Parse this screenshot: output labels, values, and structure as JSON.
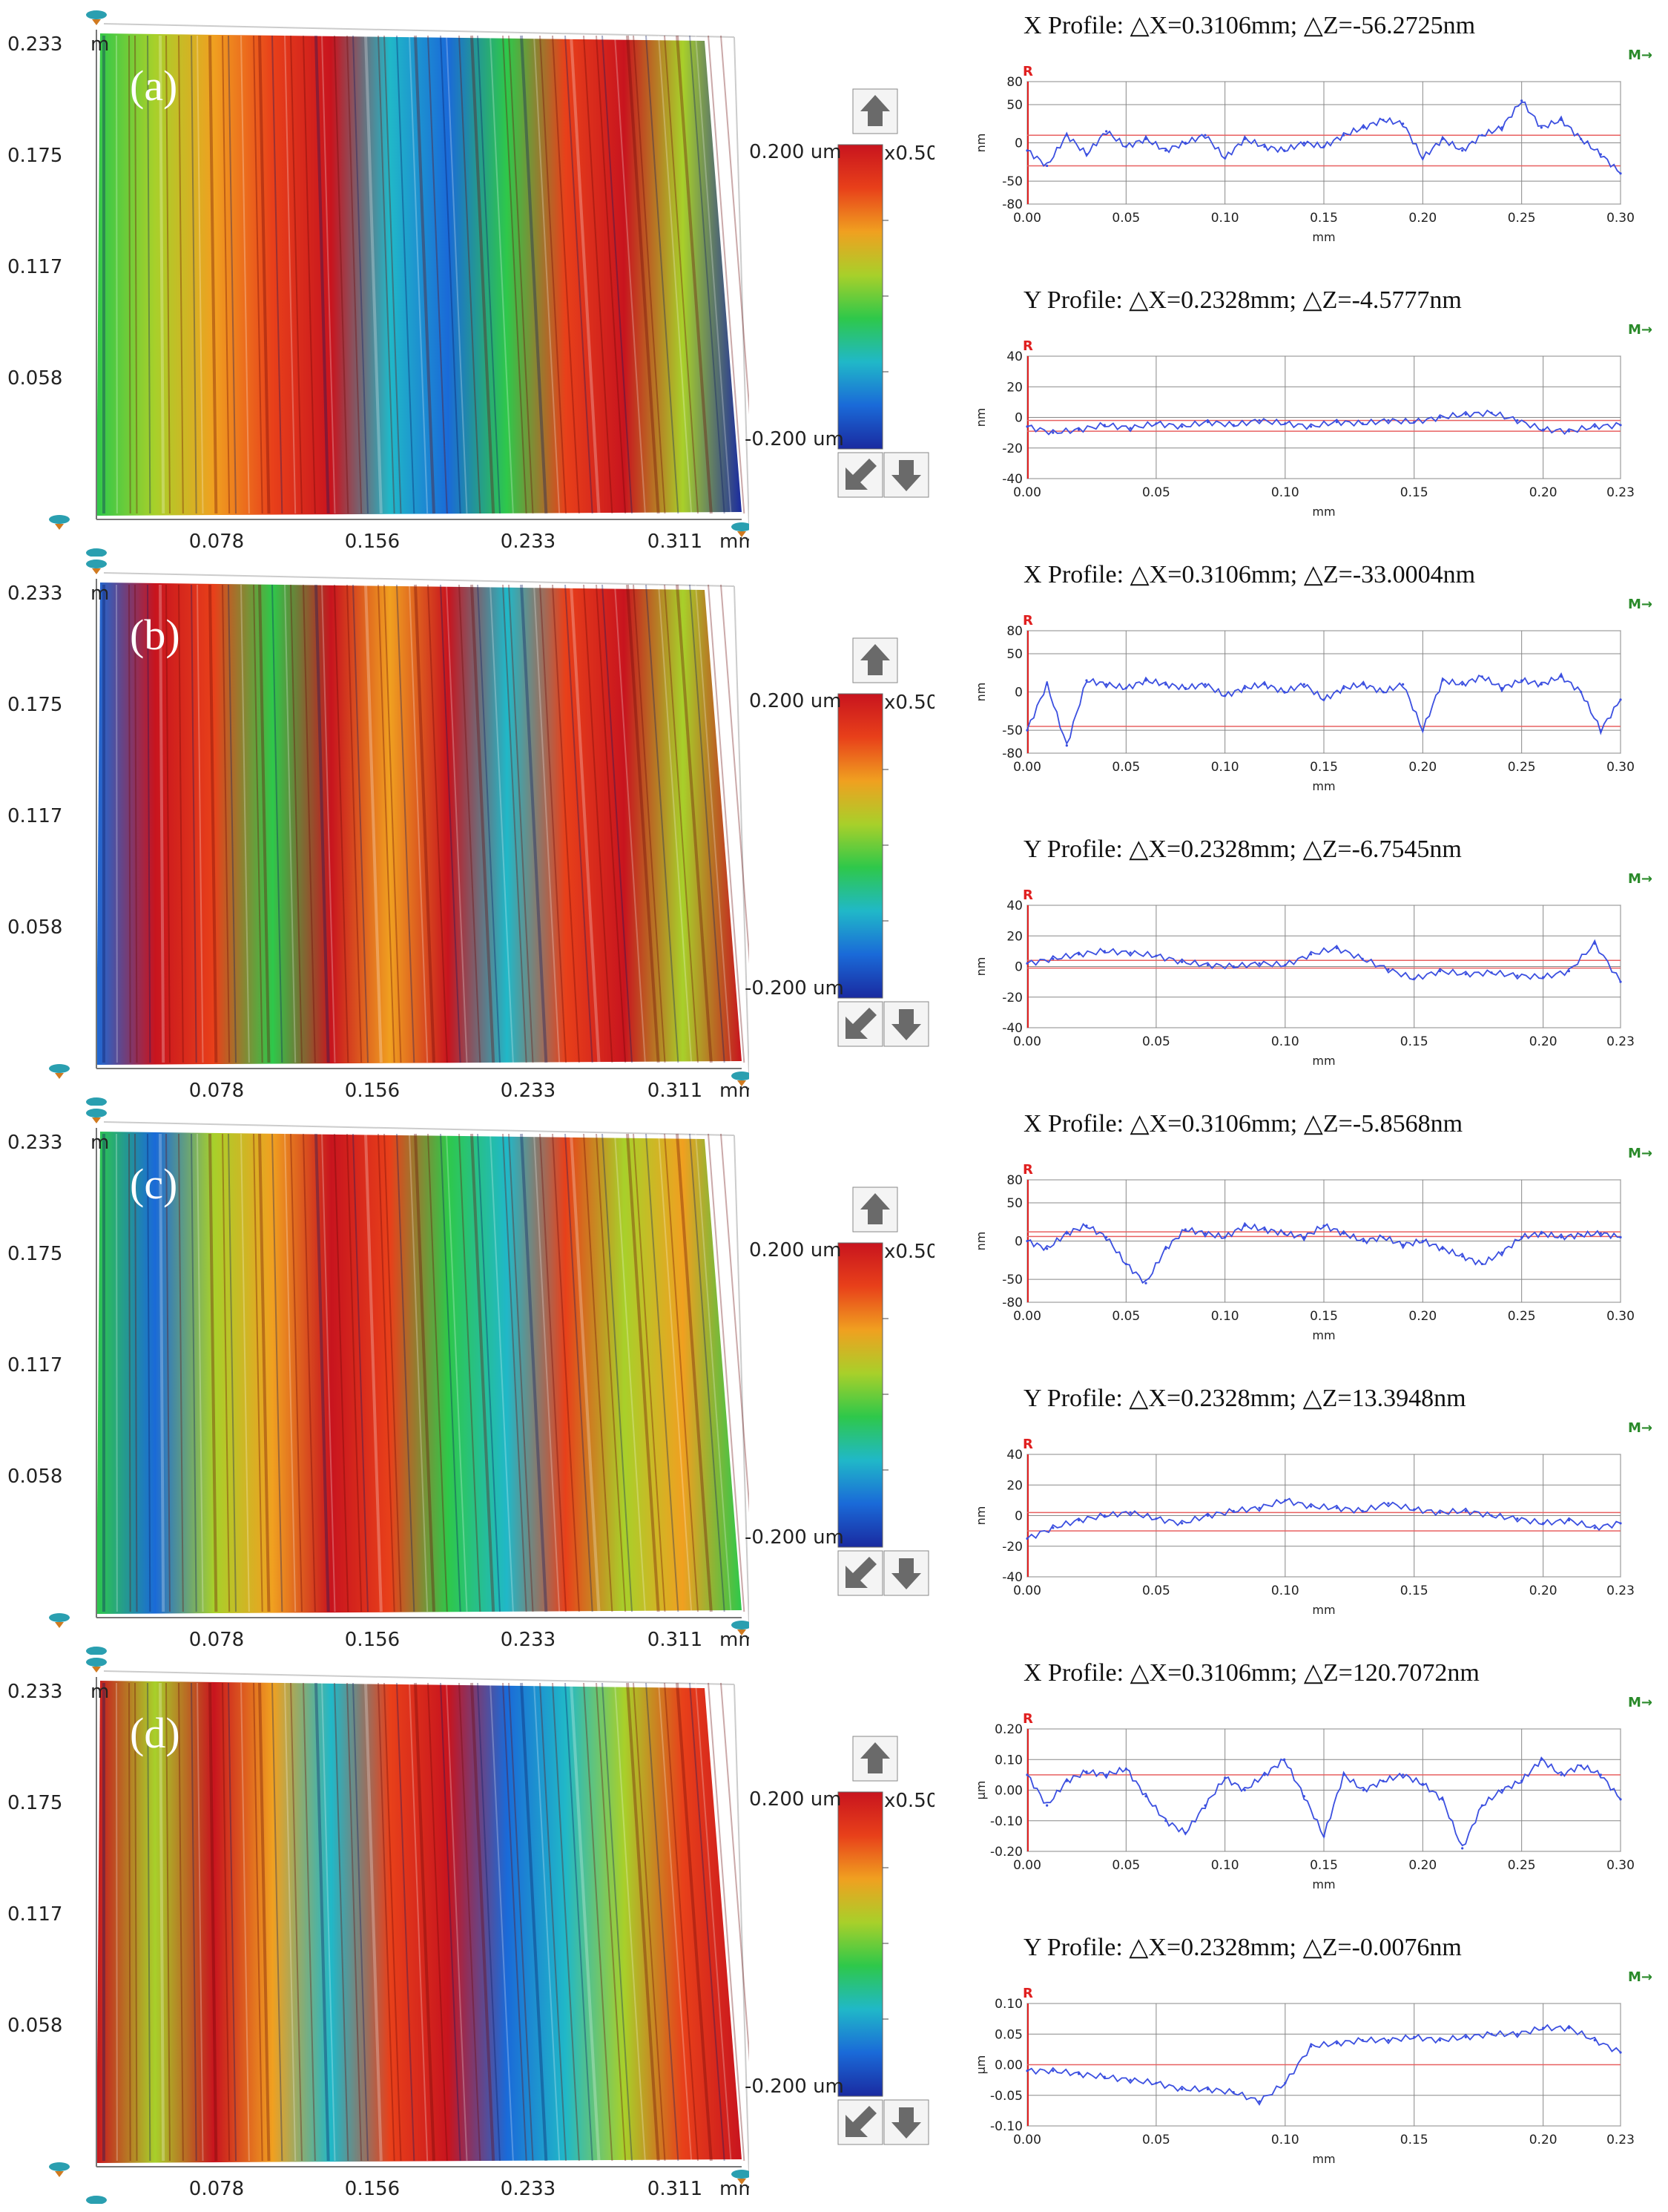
{
  "colors": {
    "profile_line": "#3b4fe0",
    "reference_line": "#e86060",
    "grid": "#888888",
    "marker_R": "#e02020",
    "marker_M": "#2a8a2a",
    "colorbar": [
      "#c8141e",
      "#e8401a",
      "#f0a020",
      "#a8d02a",
      "#2ec84a",
      "#20b8c8",
      "#1a6ad8",
      "#1a2aa0"
    ]
  },
  "icons": [
    "arrow-up-icon",
    "arrow-down-left-icon",
    "arrow-down-icon",
    "axis-handle-icon"
  ],
  "common": {
    "scale_top": "0.200 um",
    "scale_bottom": "-0.200 um",
    "scale_mult": "x0.50",
    "marker_R": "R",
    "marker_M": "M→",
    "x_ticks": [
      "0.078",
      "0.156",
      "0.233",
      "0.311"
    ],
    "x_unit": "mm",
    "y_ticks": [
      "0.233",
      "0.175",
      "0.117",
      "0.058"
    ],
    "y_unit_stub": "m"
  },
  "panels": [
    {
      "label": "(a)",
      "surface_bands": [
        "#2ec84a",
        "#a8d02a",
        "#f0a020",
        "#e8401a",
        "#c8141e",
        "#20b8c8",
        "#1a6ad8",
        "#2ec84a",
        "#e8401a",
        "#c8141e",
        "#a8d02a",
        "#1a2aa0"
      ],
      "x_profile": {
        "title": "X Profile: △X=0.3106mm;    △Z=-56.2725nm",
        "chart_data": {
          "type": "line",
          "xlabel": "mm",
          "ylabel": "nm",
          "xlim": [
            0,
            0.3
          ],
          "ylim": [
            -80,
            80
          ],
          "xticks": [
            "0.00",
            "0.05",
            "0.10",
            "0.15",
            "0.20",
            "0.25",
            "0.30"
          ],
          "yticks": [
            "80",
            "50",
            "0",
            "-50",
            "-80"
          ],
          "ref_lines": [
            10,
            -30
          ],
          "x": [
            0,
            0.01,
            0.02,
            0.03,
            0.04,
            0.05,
            0.06,
            0.07,
            0.08,
            0.09,
            0.1,
            0.11,
            0.12,
            0.13,
            0.14,
            0.15,
            0.16,
            0.17,
            0.18,
            0.19,
            0.2,
            0.21,
            0.22,
            0.23,
            0.24,
            0.25,
            0.26,
            0.27,
            0.28,
            0.29,
            0.3
          ],
          "values": [
            -10,
            -30,
            10,
            -15,
            15,
            -5,
            5,
            -10,
            0,
            10,
            -20,
            5,
            -5,
            -10,
            0,
            -5,
            10,
            20,
            30,
            25,
            -20,
            5,
            -10,
            10,
            20,
            55,
            20,
            30,
            5,
            -15,
            -40
          ]
        }
      },
      "y_profile": {
        "title": "Y Profile: △X=0.2328mm;    △Z=-4.5777nm",
        "chart_data": {
          "type": "line",
          "xlabel": "mm",
          "ylabel": "nm",
          "xlim": [
            0,
            0.23
          ],
          "ylim": [
            -40,
            40
          ],
          "xticks": [
            "0.00",
            "0.05",
            "0.10",
            "0.15",
            "0.20",
            "0.23"
          ],
          "yticks": [
            "40",
            "20",
            "0",
            "-20",
            "-40"
          ],
          "ref_lines": [
            -2,
            -9
          ],
          "x": [
            0,
            0.01,
            0.02,
            0.03,
            0.04,
            0.05,
            0.06,
            0.07,
            0.08,
            0.09,
            0.1,
            0.11,
            0.12,
            0.13,
            0.14,
            0.15,
            0.16,
            0.17,
            0.18,
            0.19,
            0.2,
            0.21,
            0.22,
            0.23
          ],
          "values": [
            -6,
            -10,
            -8,
            -5,
            -7,
            -4,
            -6,
            -3,
            -5,
            -2,
            -4,
            -6,
            -3,
            -4,
            -2,
            -3,
            0,
            2,
            3,
            -2,
            -8,
            -9,
            -6,
            -5
          ]
        }
      }
    },
    {
      "label": "(b)",
      "surface_bands": [
        "#1a6ad8",
        "#c8141e",
        "#e8401a",
        "#2ec84a",
        "#c8141e",
        "#f0a020",
        "#c8141e",
        "#20b8c8",
        "#e8401a",
        "#c8141e",
        "#a8d02a",
        "#c8141e"
      ],
      "x_profile": {
        "title": "X Profile: △X=0.3106mm;    △Z=-33.0004nm",
        "chart_data": {
          "type": "line",
          "xlabel": "mm",
          "ylabel": "nm",
          "xlim": [
            0,
            0.3
          ],
          "ylim": [
            -80,
            80
          ],
          "xticks": [
            "0.00",
            "0.05",
            "0.10",
            "0.15",
            "0.20",
            "0.25",
            "0.30"
          ],
          "yticks": [
            "80",
            "50",
            "0",
            "-50",
            "-80"
          ],
          "ref_lines": [
            -45
          ],
          "x": [
            0,
            0.01,
            0.02,
            0.03,
            0.04,
            0.05,
            0.06,
            0.07,
            0.08,
            0.09,
            0.1,
            0.11,
            0.12,
            0.13,
            0.14,
            0.15,
            0.16,
            0.17,
            0.18,
            0.19,
            0.2,
            0.21,
            0.22,
            0.23,
            0.24,
            0.25,
            0.26,
            0.27,
            0.28,
            0.29,
            0.3
          ],
          "values": [
            -50,
            10,
            -70,
            15,
            10,
            5,
            15,
            10,
            5,
            10,
            -5,
            5,
            10,
            0,
            10,
            -10,
            5,
            10,
            0,
            10,
            -50,
            15,
            10,
            20,
            5,
            15,
            10,
            20,
            0,
            -50,
            -10
          ]
        }
      },
      "y_profile": {
        "title": "Y Profile: △X=0.2328mm;    △Z=-6.7545nm",
        "chart_data": {
          "type": "line",
          "xlabel": "mm",
          "ylabel": "nm",
          "xlim": [
            0,
            0.23
          ],
          "ylim": [
            -40,
            40
          ],
          "xticks": [
            "0.00",
            "0.05",
            "0.10",
            "0.15",
            "0.20",
            "0.23"
          ],
          "yticks": [
            "40",
            "20",
            "0",
            "-20",
            "-40"
          ],
          "ref_lines": [
            4,
            -1
          ],
          "x": [
            0,
            0.01,
            0.02,
            0.03,
            0.04,
            0.05,
            0.06,
            0.07,
            0.08,
            0.09,
            0.1,
            0.11,
            0.12,
            0.13,
            0.14,
            0.15,
            0.16,
            0.17,
            0.18,
            0.19,
            0.2,
            0.21,
            0.22,
            0.23
          ],
          "values": [
            2,
            5,
            8,
            10,
            9,
            7,
            3,
            1,
            0,
            2,
            1,
            8,
            12,
            5,
            -2,
            -8,
            -3,
            -5,
            -4,
            -6,
            -7,
            -3,
            15,
            -10
          ]
        }
      }
    },
    {
      "label": "(c)",
      "surface_bands": [
        "#2ec84a",
        "#1a6ad8",
        "#a8d02a",
        "#f0a020",
        "#c8141e",
        "#e8401a",
        "#2ec84a",
        "#20b8c8",
        "#e8401a",
        "#a8d02a",
        "#f0a020",
        "#2ec84a"
      ],
      "x_profile": {
        "title": "X Profile: △X=0.3106mm;    △Z=-5.8568nm",
        "chart_data": {
          "type": "line",
          "xlabel": "mm",
          "ylabel": "nm",
          "xlim": [
            0,
            0.3
          ],
          "ylim": [
            -80,
            80
          ],
          "xticks": [
            "0.00",
            "0.05",
            "0.10",
            "0.15",
            "0.20",
            "0.25",
            "0.30"
          ],
          "yticks": [
            "80",
            "50",
            "0",
            "-50",
            "-80"
          ],
          "ref_lines": [
            12,
            6
          ],
          "x": [
            0,
            0.01,
            0.02,
            0.03,
            0.04,
            0.05,
            0.06,
            0.07,
            0.08,
            0.09,
            0.1,
            0.11,
            0.12,
            0.13,
            0.14,
            0.15,
            0.16,
            0.17,
            0.18,
            0.19,
            0.2,
            0.21,
            0.22,
            0.23,
            0.24,
            0.25,
            0.26,
            0.27,
            0.28,
            0.29,
            0.3
          ],
          "values": [
            0,
            -10,
            10,
            20,
            5,
            -30,
            -55,
            -10,
            15,
            10,
            5,
            20,
            15,
            10,
            5,
            20,
            10,
            0,
            5,
            -5,
            0,
            -10,
            -20,
            -30,
            -15,
            5,
            10,
            5,
            8,
            10,
            5
          ]
        }
      },
      "y_profile": {
        "title": "Y Profile: △X=0.2328mm;    △Z=13.3948nm",
        "chart_data": {
          "type": "line",
          "xlabel": "mm",
          "ylabel": "nm",
          "xlim": [
            0,
            0.23
          ],
          "ylim": [
            -40,
            40
          ],
          "xticks": [
            "0.00",
            "0.05",
            "0.10",
            "0.15",
            "0.20",
            "0.23"
          ],
          "yticks": [
            "40",
            "20",
            "0",
            "-20",
            "-40"
          ],
          "ref_lines": [
            2,
            -10
          ],
          "x": [
            0,
            0.01,
            0.02,
            0.03,
            0.04,
            0.05,
            0.06,
            0.07,
            0.08,
            0.09,
            0.1,
            0.11,
            0.12,
            0.13,
            0.14,
            0.15,
            0.16,
            0.17,
            0.18,
            0.19,
            0.2,
            0.21,
            0.22,
            0.23
          ],
          "values": [
            -15,
            -8,
            -3,
            0,
            2,
            -2,
            -5,
            0,
            3,
            5,
            10,
            6,
            5,
            3,
            8,
            4,
            2,
            3,
            0,
            -2,
            -5,
            -3,
            -8,
            -5
          ]
        }
      }
    },
    {
      "label": "(d)",
      "surface_bands": [
        "#c8141e",
        "#a8d02a",
        "#c8141e",
        "#f0a020",
        "#20b8c8",
        "#e8401a",
        "#c8141e",
        "#1a6ad8",
        "#20b8c8",
        "#a8d02a",
        "#e8401a",
        "#c8141e"
      ],
      "x_profile": {
        "title": "X Profile: △X=0.3106mm;    △Z=120.7072nm",
        "chart_data": {
          "type": "line",
          "xlabel": "mm",
          "ylabel": "μm",
          "xlim": [
            0,
            0.3
          ],
          "ylim": [
            -0.2,
            0.2
          ],
          "xticks": [
            "0.00",
            "0.05",
            "0.10",
            "0.15",
            "0.20",
            "0.25",
            "0.30"
          ],
          "yticks": [
            "0.20",
            "0.10",
            "0.00",
            "-0.10",
            "-0.20"
          ],
          "ref_lines": [
            0.05
          ],
          "x": [
            0,
            0.01,
            0.02,
            0.03,
            0.04,
            0.05,
            0.06,
            0.07,
            0.08,
            0.09,
            0.1,
            0.11,
            0.12,
            0.13,
            0.14,
            0.15,
            0.16,
            0.17,
            0.18,
            0.19,
            0.2,
            0.21,
            0.22,
            0.23,
            0.24,
            0.25,
            0.26,
            0.27,
            0.28,
            0.29,
            0.3
          ],
          "values": [
            0.05,
            -0.05,
            0.03,
            0.06,
            0.05,
            0.07,
            -0.02,
            -0.1,
            -0.14,
            -0.05,
            0.04,
            0.0,
            0.05,
            0.1,
            -0.02,
            -0.15,
            0.05,
            0.0,
            0.03,
            0.05,
            0.02,
            -0.03,
            -0.19,
            -0.05,
            0.0,
            0.03,
            0.1,
            0.05,
            0.08,
            0.05,
            -0.03
          ]
        }
      },
      "y_profile": {
        "title": "Y Profile: △X=0.2328mm;    △Z=-0.0076nm",
        "chart_data": {
          "type": "line",
          "xlabel": "mm",
          "ylabel": "μm",
          "xlim": [
            0,
            0.23
          ],
          "ylim": [
            -0.1,
            0.1
          ],
          "xticks": [
            "0.00",
            "0.05",
            "0.10",
            "0.15",
            "0.20",
            "0.23"
          ],
          "yticks": [
            "0.10",
            "0.05",
            "0.00",
            "-0.05",
            "-0.10"
          ],
          "ref_lines": [
            0.0
          ],
          "x": [
            0,
            0.01,
            0.02,
            0.03,
            0.04,
            0.05,
            0.06,
            0.07,
            0.08,
            0.09,
            0.1,
            0.11,
            0.12,
            0.13,
            0.14,
            0.15,
            0.16,
            0.17,
            0.18,
            0.19,
            0.2,
            0.21,
            0.22,
            0.23
          ],
          "values": [
            -0.01,
            -0.01,
            -0.015,
            -0.02,
            -0.025,
            -0.03,
            -0.04,
            -0.04,
            -0.045,
            -0.06,
            -0.03,
            0.03,
            0.035,
            0.04,
            0.04,
            0.045,
            0.04,
            0.045,
            0.05,
            0.05,
            0.06,
            0.06,
            0.04,
            0.02
          ]
        }
      }
    }
  ]
}
